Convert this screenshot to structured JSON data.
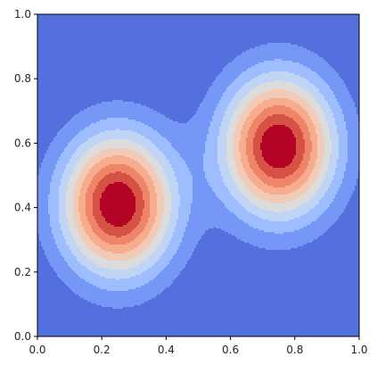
{
  "chart_data": {
    "type": "contour",
    "title": "",
    "xlabel": "",
    "ylabel": "",
    "xlim": [
      0.0,
      1.0
    ],
    "ylim": [
      0.0,
      1.0
    ],
    "x_ticks": [
      "0.0",
      "0.2",
      "0.4",
      "0.6",
      "0.8",
      "1.0"
    ],
    "y_ticks": [
      "0.0",
      "0.2",
      "0.4",
      "0.6",
      "0.8",
      "1.0"
    ],
    "x_tick_values": [
      0.0,
      0.2,
      0.4,
      0.6,
      0.8,
      1.0
    ],
    "y_tick_values": [
      0.0,
      0.2,
      0.4,
      0.6,
      0.8,
      1.0
    ],
    "grid": false,
    "legend": "none",
    "colormap": "coolwarm",
    "function": "sum of two gaussian bumps",
    "peaks": [
      {
        "x": 0.25,
        "y": 0.41,
        "sigma_x": 0.12,
        "sigma_y": 0.15,
        "amplitude": 1.0
      },
      {
        "x": 0.75,
        "y": 0.59,
        "sigma_x": 0.12,
        "sigma_y": 0.15,
        "amplitude": 1.0
      }
    ],
    "levels": [
      0.0,
      0.1,
      0.2,
      0.3,
      0.4,
      0.5,
      0.6,
      0.7,
      0.8,
      0.9,
      1.0
    ],
    "level_colors": [
      "#5470de",
      "#7597f6",
      "#9dbdff",
      "#c0d4f5",
      "#dddcdc",
      "#f2cbb7",
      "#f7ac8e",
      "#ee8468",
      "#d65244",
      "#b40426"
    ]
  }
}
